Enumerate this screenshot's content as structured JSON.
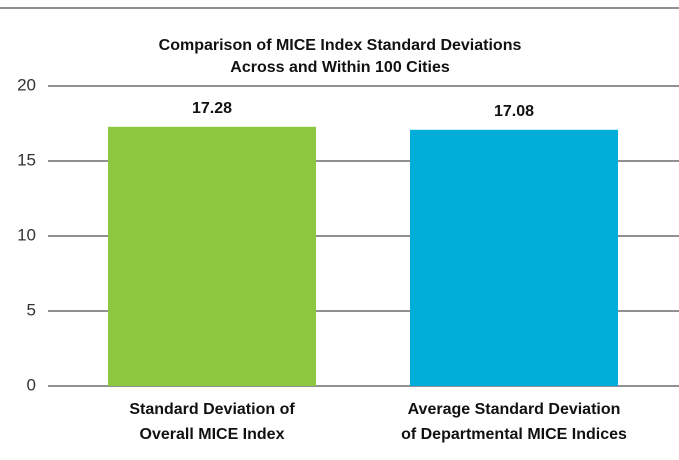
{
  "chart_data": {
    "type": "bar",
    "title": [
      "Comparison of MICE Index Standard Deviations",
      "Across and Within 100 Cities"
    ],
    "categories": [
      [
        "Standard Deviation of",
        "Overall MICE Index"
      ],
      [
        "Average Standard Deviation",
        "of Departmental MICE Indices"
      ]
    ],
    "values": [
      17.28,
      17.08
    ],
    "colors": [
      "#8dc63f",
      "#00acd8"
    ],
    "ylim": [
      0,
      20
    ],
    "yticks": [
      0,
      5,
      10,
      15,
      20
    ],
    "grid": true
  }
}
